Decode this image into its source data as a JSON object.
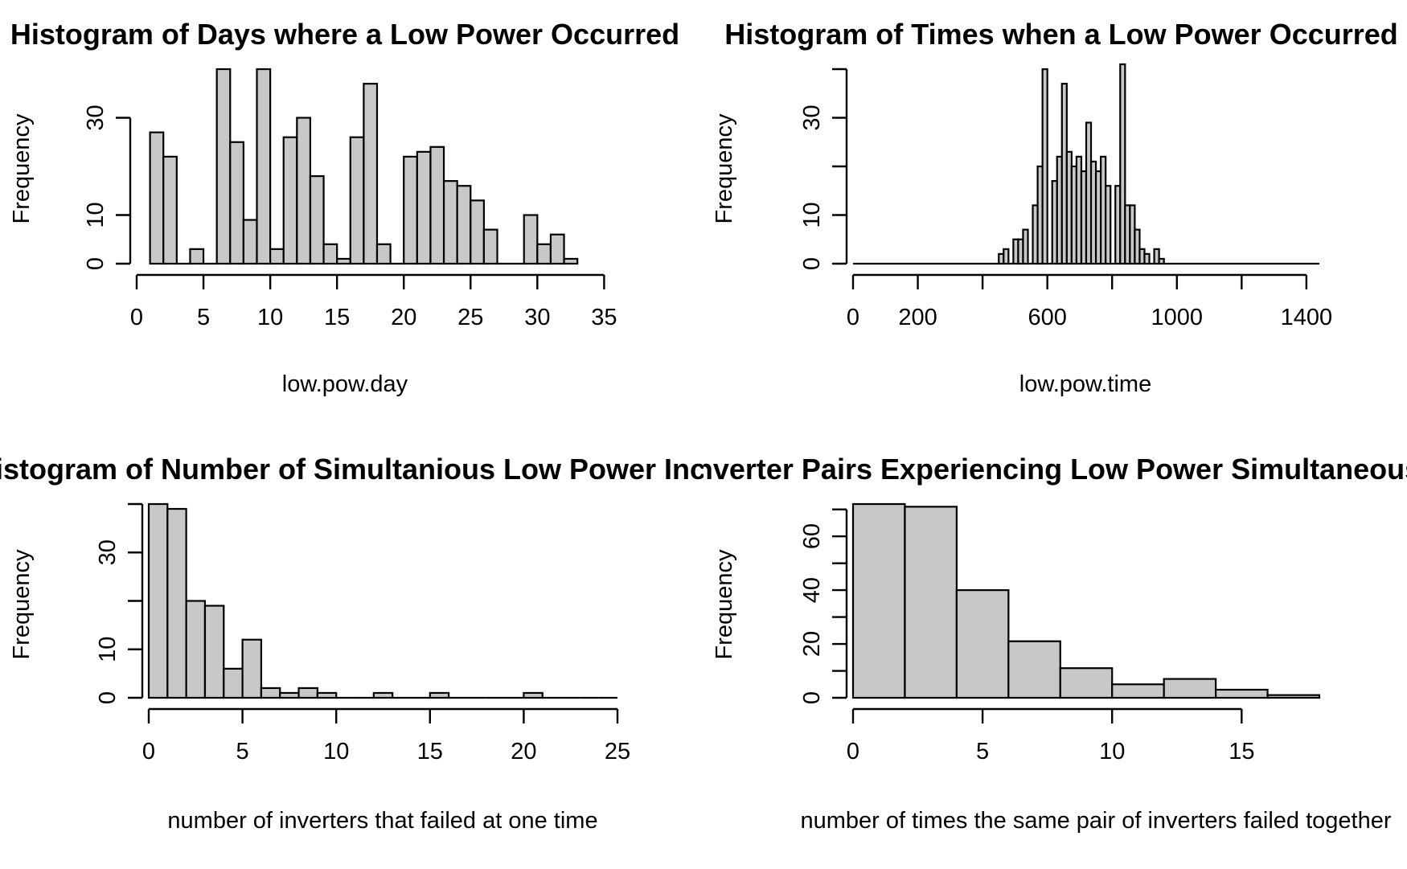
{
  "chart_data": [
    {
      "type": "bar",
      "title": "Histogram of Days where a Low Power Occurred",
      "xlabel": "low.pow.day",
      "ylabel": "Frequency",
      "xlim": [
        0,
        36
      ],
      "ylim": [
        0,
        40
      ],
      "xticks": [
        0,
        5,
        10,
        15,
        20,
        25,
        30,
        35
      ],
      "yticks": [
        0,
        10,
        30
      ],
      "bins": [
        {
          "x0": 1,
          "x1": 2,
          "count": 27
        },
        {
          "x0": 2,
          "x1": 3,
          "count": 22
        },
        {
          "x0": 3,
          "x1": 4,
          "count": 0
        },
        {
          "x0": 4,
          "x1": 5,
          "count": 3
        },
        {
          "x0": 5,
          "x1": 6,
          "count": 0
        },
        {
          "x0": 6,
          "x1": 7,
          "count": 40
        },
        {
          "x0": 7,
          "x1": 8,
          "count": 25
        },
        {
          "x0": 8,
          "x1": 9,
          "count": 9
        },
        {
          "x0": 9,
          "x1": 10,
          "count": 40
        },
        {
          "x0": 10,
          "x1": 11,
          "count": 3
        },
        {
          "x0": 11,
          "x1": 12,
          "count": 26
        },
        {
          "x0": 12,
          "x1": 13,
          "count": 30
        },
        {
          "x0": 13,
          "x1": 14,
          "count": 18
        },
        {
          "x0": 14,
          "x1": 15,
          "count": 4
        },
        {
          "x0": 15,
          "x1": 16,
          "count": 1
        },
        {
          "x0": 16,
          "x1": 17,
          "count": 26
        },
        {
          "x0": 17,
          "x1": 18,
          "count": 37
        },
        {
          "x0": 18,
          "x1": 19,
          "count": 4
        },
        {
          "x0": 19,
          "x1": 20,
          "count": 0
        },
        {
          "x0": 20,
          "x1": 21,
          "count": 22
        },
        {
          "x0": 21,
          "x1": 22,
          "count": 23
        },
        {
          "x0": 22,
          "x1": 23,
          "count": 24
        },
        {
          "x0": 23,
          "x1": 24,
          "count": 17
        },
        {
          "x0": 24,
          "x1": 25,
          "count": 16
        },
        {
          "x0": 25,
          "x1": 26,
          "count": 13
        },
        {
          "x0": 26,
          "x1": 27,
          "count": 7
        },
        {
          "x0": 27,
          "x1": 28,
          "count": 0
        },
        {
          "x0": 28,
          "x1": 29,
          "count": 0
        },
        {
          "x0": 29,
          "x1": 30,
          "count": 10
        },
        {
          "x0": 30,
          "x1": 31,
          "count": 4
        },
        {
          "x0": 31,
          "x1": 32,
          "count": 6
        },
        {
          "x0": 32,
          "x1": 33,
          "count": 1
        }
      ]
    },
    {
      "type": "bar",
      "title": "Histogram of Times when a Low Power Occurred",
      "xlabel": "low.pow.time",
      "ylabel": "Frequency",
      "xlim": [
        0,
        1440
      ],
      "ylim": [
        0,
        40
      ],
      "xticks": [
        0,
        200,
        400,
        600,
        800,
        1000,
        1200,
        1400
      ],
      "xticklabels": [
        "0",
        "200",
        "",
        "600",
        "",
        "1000",
        "",
        "1400"
      ],
      "yticks": [
        0,
        10,
        20,
        30,
        40
      ],
      "yticklabels": [
        "0",
        "10",
        "",
        "30",
        ""
      ],
      "bins": [
        {
          "x0": 0,
          "x1": 450,
          "count": 0
        },
        {
          "x0": 450,
          "x1": 465,
          "count": 2
        },
        {
          "x0": 465,
          "x1": 480,
          "count": 3
        },
        {
          "x0": 480,
          "x1": 495,
          "count": 0
        },
        {
          "x0": 495,
          "x1": 510,
          "count": 5
        },
        {
          "x0": 510,
          "x1": 525,
          "count": 5
        },
        {
          "x0": 525,
          "x1": 540,
          "count": 7
        },
        {
          "x0": 540,
          "x1": 555,
          "count": 0
        },
        {
          "x0": 555,
          "x1": 570,
          "count": 12
        },
        {
          "x0": 570,
          "x1": 585,
          "count": 20
        },
        {
          "x0": 585,
          "x1": 600,
          "count": 40
        },
        {
          "x0": 600,
          "x1": 615,
          "count": 0
        },
        {
          "x0": 615,
          "x1": 630,
          "count": 17
        },
        {
          "x0": 630,
          "x1": 645,
          "count": 22
        },
        {
          "x0": 645,
          "x1": 660,
          "count": 37
        },
        {
          "x0": 660,
          "x1": 675,
          "count": 23
        },
        {
          "x0": 675,
          "x1": 690,
          "count": 20
        },
        {
          "x0": 690,
          "x1": 705,
          "count": 22
        },
        {
          "x0": 705,
          "x1": 720,
          "count": 19
        },
        {
          "x0": 720,
          "x1": 735,
          "count": 29
        },
        {
          "x0": 735,
          "x1": 750,
          "count": 21
        },
        {
          "x0": 750,
          "x1": 765,
          "count": 19
        },
        {
          "x0": 765,
          "x1": 780,
          "count": 22
        },
        {
          "x0": 780,
          "x1": 795,
          "count": 16
        },
        {
          "x0": 795,
          "x1": 810,
          "count": 0
        },
        {
          "x0": 810,
          "x1": 825,
          "count": 16
        },
        {
          "x0": 825,
          "x1": 840,
          "count": 41
        },
        {
          "x0": 840,
          "x1": 855,
          "count": 12
        },
        {
          "x0": 855,
          "x1": 870,
          "count": 12
        },
        {
          "x0": 870,
          "x1": 885,
          "count": 7
        },
        {
          "x0": 885,
          "x1": 900,
          "count": 3
        },
        {
          "x0": 900,
          "x1": 915,
          "count": 2
        },
        {
          "x0": 915,
          "x1": 930,
          "count": 0
        },
        {
          "x0": 930,
          "x1": 945,
          "count": 3
        },
        {
          "x0": 945,
          "x1": 960,
          "count": 1
        },
        {
          "x0": 960,
          "x1": 1440,
          "count": 0
        }
      ]
    },
    {
      "type": "bar",
      "title": "Histogram of Number of Simultanious Low Power Incidents",
      "xlabel": "number of inverters that failed at one time",
      "ylabel": "Frequency",
      "xlim": [
        0,
        25
      ],
      "ylim": [
        0,
        40
      ],
      "xticks": [
        0,
        5,
        10,
        15,
        20,
        25
      ],
      "yticks": [
        0,
        10,
        20,
        30,
        40
      ],
      "yticklabels": [
        "0",
        "10",
        "",
        "30",
        ""
      ],
      "bins": [
        {
          "x0": 0,
          "x1": 1,
          "count": 40
        },
        {
          "x0": 1,
          "x1": 2,
          "count": 39
        },
        {
          "x0": 2,
          "x1": 3,
          "count": 20
        },
        {
          "x0": 3,
          "x1": 4,
          "count": 19
        },
        {
          "x0": 4,
          "x1": 5,
          "count": 6
        },
        {
          "x0": 5,
          "x1": 6,
          "count": 12
        },
        {
          "x0": 6,
          "x1": 7,
          "count": 2
        },
        {
          "x0": 7,
          "x1": 8,
          "count": 1
        },
        {
          "x0": 8,
          "x1": 9,
          "count": 2
        },
        {
          "x0": 9,
          "x1": 10,
          "count": 1
        },
        {
          "x0": 10,
          "x1": 11,
          "count": 0
        },
        {
          "x0": 11,
          "x1": 12,
          "count": 0
        },
        {
          "x0": 12,
          "x1": 13,
          "count": 1
        },
        {
          "x0": 13,
          "x1": 14,
          "count": 0
        },
        {
          "x0": 14,
          "x1": 15,
          "count": 0
        },
        {
          "x0": 15,
          "x1": 16,
          "count": 1
        },
        {
          "x0": 16,
          "x1": 17,
          "count": 0
        },
        {
          "x0": 17,
          "x1": 18,
          "count": 0
        },
        {
          "x0": 18,
          "x1": 19,
          "count": 0
        },
        {
          "x0": 19,
          "x1": 20,
          "count": 0
        },
        {
          "x0": 20,
          "x1": 21,
          "count": 1
        },
        {
          "x0": 21,
          "x1": 22,
          "count": 0
        },
        {
          "x0": 22,
          "x1": 23,
          "count": 0
        },
        {
          "x0": 23,
          "x1": 24,
          "count": 0
        },
        {
          "x0": 24,
          "x1": 25,
          "count": 0
        }
      ]
    },
    {
      "type": "bar",
      "title": "Histogram of Inverter Pairs Experiencing Low Power Simultaneously",
      "xlabel": "number of times the same pair of inverters failed together",
      "ylabel": "Frequency",
      "xlim": [
        0,
        18
      ],
      "ylim": [
        0,
        72
      ],
      "xticks": [
        0,
        5,
        10,
        15
      ],
      "yticks": [
        0,
        10,
        20,
        30,
        40,
        50,
        60,
        70
      ],
      "yticklabels": [
        "0",
        "",
        "20",
        "",
        "40",
        "",
        "60",
        ""
      ],
      "bins": [
        {
          "x0": 0,
          "x1": 2,
          "count": 72
        },
        {
          "x0": 2,
          "x1": 4,
          "count": 71
        },
        {
          "x0": 4,
          "x1": 6,
          "count": 40
        },
        {
          "x0": 6,
          "x1": 8,
          "count": 21
        },
        {
          "x0": 8,
          "x1": 10,
          "count": 11
        },
        {
          "x0": 10,
          "x1": 12,
          "count": 5
        },
        {
          "x0": 12,
          "x1": 14,
          "count": 7
        },
        {
          "x0": 14,
          "x1": 16,
          "count": 3
        },
        {
          "x0": 16,
          "x1": 18,
          "count": 1
        }
      ]
    }
  ]
}
